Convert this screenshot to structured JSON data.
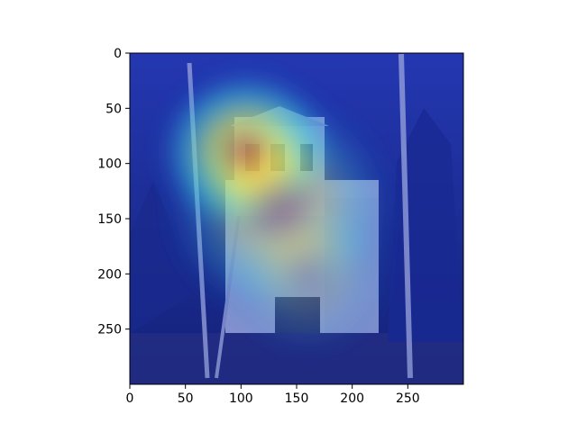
{
  "chart_data": {
    "type": "heatmap",
    "title": "",
    "xlabel": "",
    "ylabel": "",
    "xlim": [
      0,
      300
    ],
    "ylim": [
      300,
      0
    ],
    "x_ticks": [
      0,
      50,
      100,
      150,
      200,
      250
    ],
    "y_ticks": [
      0,
      50,
      100,
      150,
      200,
      250
    ],
    "grid": false,
    "legend": "none",
    "colormap": "jet",
    "background_image": "photo of a church with tall domes among bare birch trees",
    "hotspots": [
      {
        "x": 105,
        "y": 90,
        "rx": 85,
        "ry": 80,
        "intensity": 1.0
      },
      {
        "x": 135,
        "y": 140,
        "rx": 110,
        "ry": 110,
        "intensity": 0.45
      },
      {
        "x": 160,
        "y": 200,
        "rx": 80,
        "ry": 80,
        "intensity": 0.2
      }
    ],
    "colors": {
      "low": "#1428c8",
      "mid": "#38d6e0",
      "mid_high": "#f7f24b",
      "high": "#d81f1f"
    }
  }
}
